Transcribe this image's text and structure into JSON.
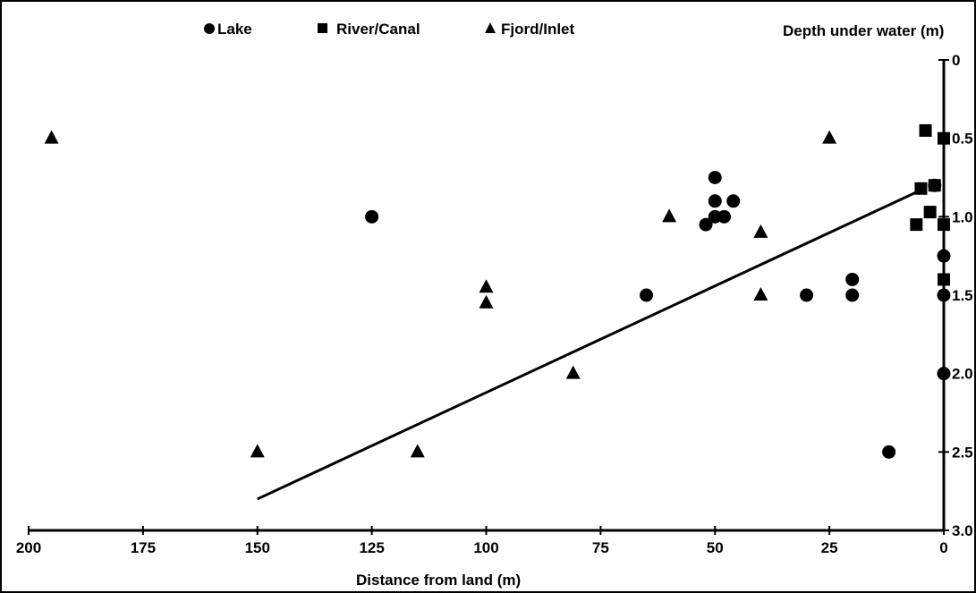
{
  "chart_data": {
    "type": "scatter",
    "title": "",
    "xlabel": "Distance from land (m)",
    "ylabel": "Depth under water (m)",
    "xlim": [
      200,
      0
    ],
    "ylim": [
      3.0,
      0
    ],
    "x_reversed": true,
    "y_inverted": true,
    "x_ticks": [
      200,
      175,
      150,
      125,
      100,
      75,
      50,
      25,
      0
    ],
    "x_tick_labels": [
      "200",
      "175",
      "150",
      "125",
      "100",
      "75",
      "50",
      "25",
      "0"
    ],
    "y_ticks": [
      0,
      0.5,
      1.0,
      1.5,
      2.0,
      2.5,
      3.0
    ],
    "y_tick_labels": [
      "0",
      "0.5",
      "1.0",
      "1.5",
      "2.0",
      "2.5",
      "3.0"
    ],
    "legend_position": "top",
    "series": [
      {
        "name": "Lake",
        "marker": "circle",
        "points": [
          [
            125,
            1.0
          ],
          [
            65,
            1.5
          ],
          [
            52,
            1.05
          ],
          [
            50,
            0.75
          ],
          [
            50,
            0.9
          ],
          [
            50,
            1.0
          ],
          [
            48,
            1.0
          ],
          [
            46,
            0.9
          ],
          [
            30,
            1.5
          ],
          [
            20,
            1.4
          ],
          [
            20,
            1.5
          ],
          [
            12,
            2.5
          ],
          [
            0,
            1.25
          ],
          [
            0,
            1.5
          ],
          [
            0,
            2.0
          ],
          [
            2,
            0.8
          ]
        ]
      },
      {
        "name": "River/Canal",
        "marker": "square",
        "points": [
          [
            4,
            0.45
          ],
          [
            0,
            0.5
          ],
          [
            2,
            0.8
          ],
          [
            5,
            0.82
          ],
          [
            3,
            0.97
          ],
          [
            6,
            1.05
          ],
          [
            0,
            1.05
          ],
          [
            0,
            1.4
          ]
        ]
      },
      {
        "name": "Fjord/Inlet",
        "marker": "triangle",
        "points": [
          [
            195,
            0.5
          ],
          [
            150,
            2.5
          ],
          [
            115,
            2.5
          ],
          [
            100,
            1.45
          ],
          [
            100,
            1.55
          ],
          [
            81,
            2.0
          ],
          [
            60,
            1.0
          ],
          [
            40,
            1.1
          ],
          [
            40,
            1.5
          ],
          [
            25,
            0.5
          ]
        ]
      }
    ],
    "trendline": {
      "x": [
        150,
        5
      ],
      "y": [
        2.8,
        0.83
      ]
    }
  }
}
